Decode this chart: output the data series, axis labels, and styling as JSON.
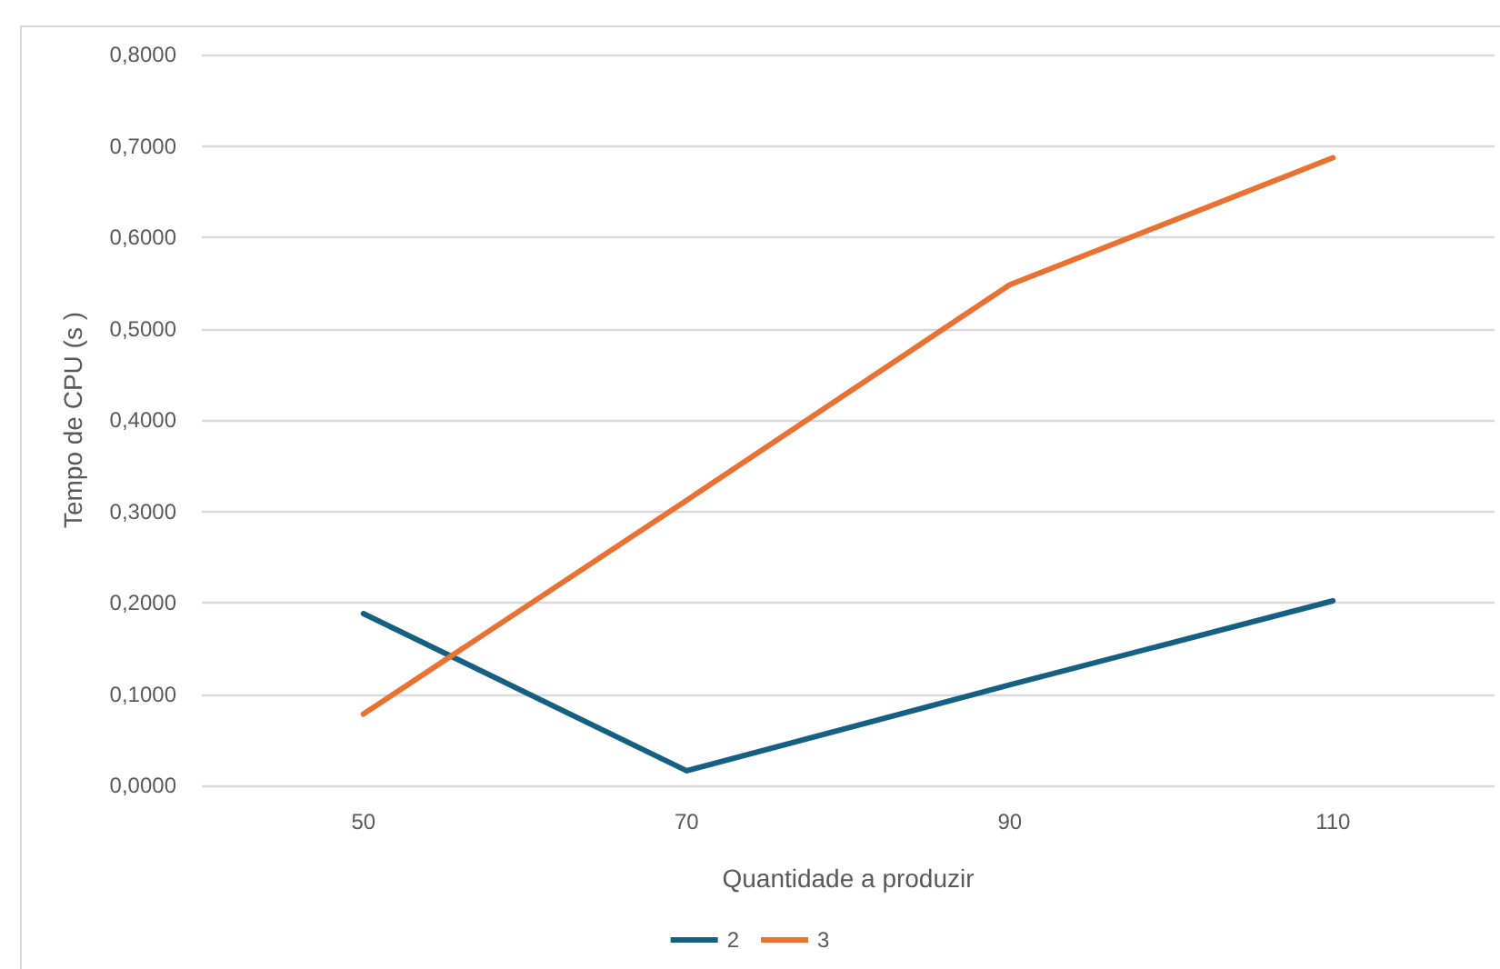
{
  "chart_data": {
    "type": "line",
    "xlabel": "Quantidade a produzir",
    "ylabel": "Tempo de CPU (s )",
    "categories": [
      "50",
      "70",
      "90",
      "110"
    ],
    "series": [
      {
        "name": "2",
        "color": "#156082",
        "values": [
          0.188,
          0.016,
          0.11,
          0.202
        ]
      },
      {
        "name": "3",
        "color": "#e97132",
        "values": [
          0.078,
          0.312,
          0.548,
          0.687
        ]
      }
    ],
    "ylim": [
      0,
      0.8
    ],
    "yticks": [
      {
        "value": 0,
        "label": "0,0000"
      },
      {
        "value": 0.1,
        "label": "0,1000"
      },
      {
        "value": 0.2,
        "label": "0,2000"
      },
      {
        "value": 0.3,
        "label": "0,3000"
      },
      {
        "value": 0.4,
        "label": "0,4000"
      },
      {
        "value": 0.5,
        "label": "0,5000"
      },
      {
        "value": 0.6,
        "label": "0,6000"
      },
      {
        "value": 0.7,
        "label": "0,7000"
      },
      {
        "value": 0.8,
        "label": "0,8000"
      }
    ],
    "grid": "y",
    "legend": "bottom",
    "marker": "none",
    "line_style": "solid"
  }
}
